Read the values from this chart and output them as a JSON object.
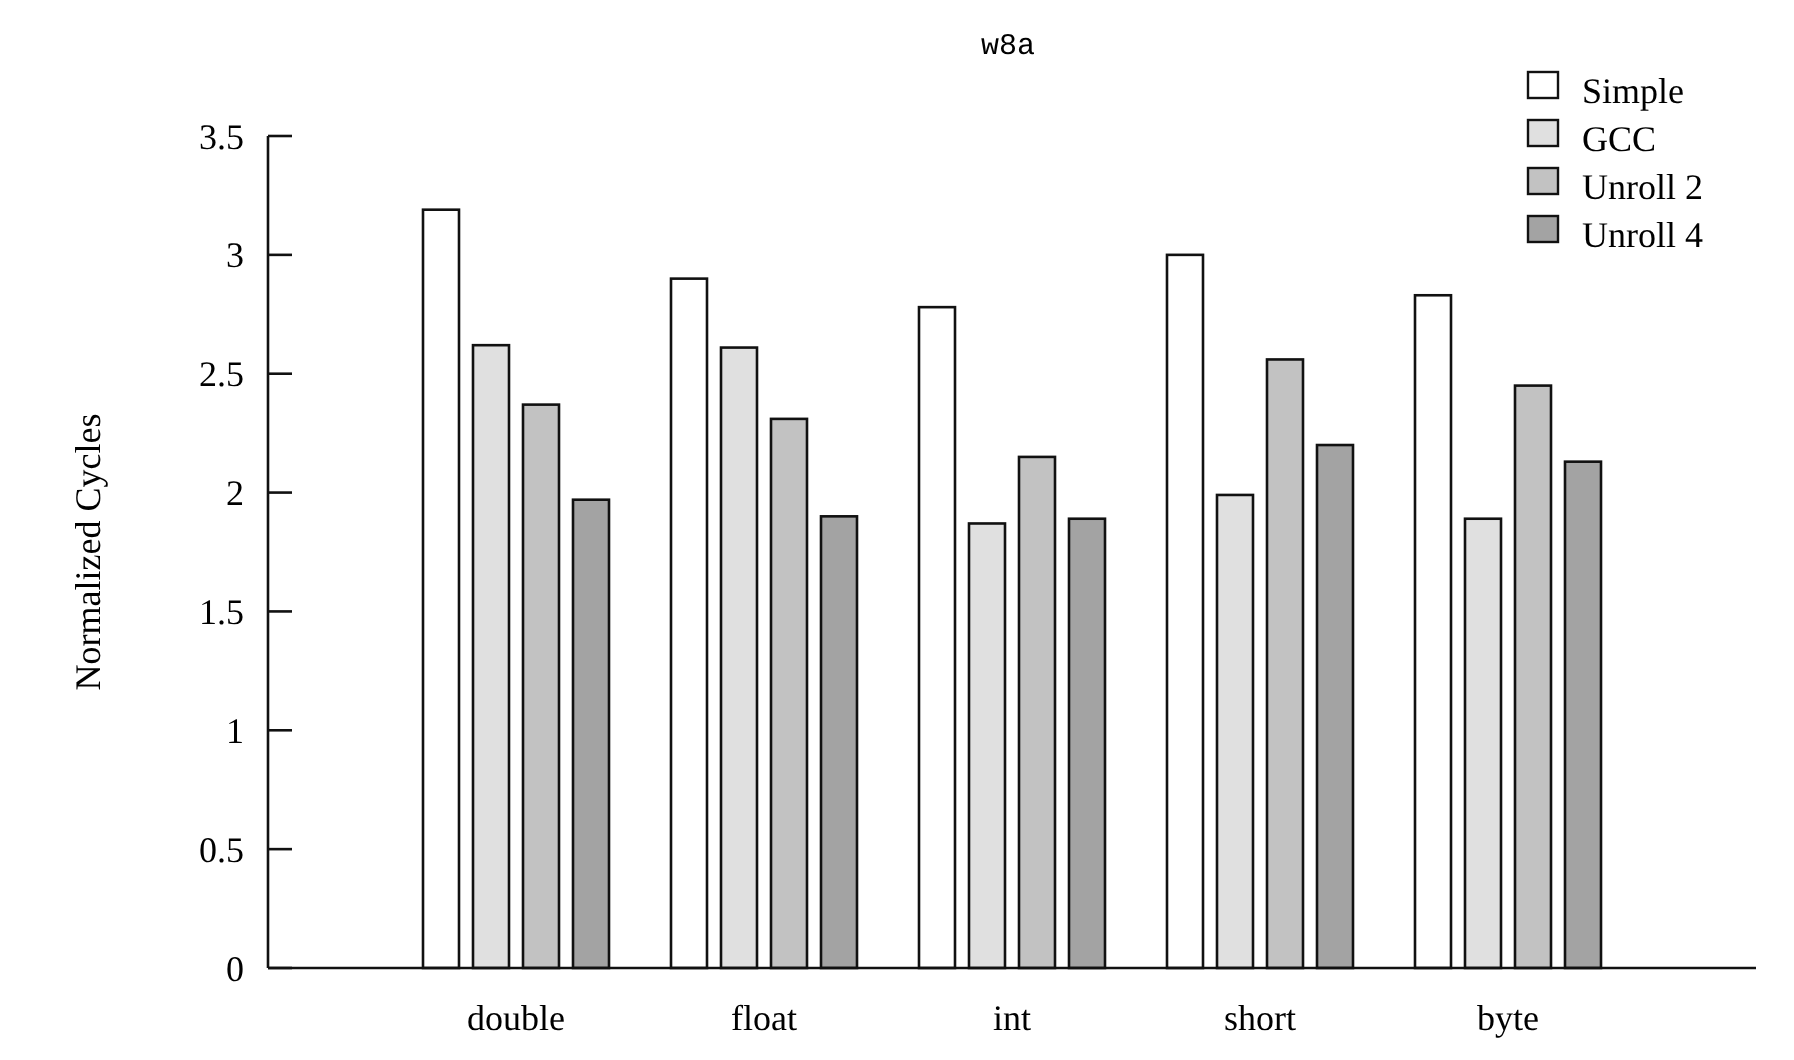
{
  "chart_data": {
    "type": "bar",
    "title": "w8a",
    "ylabel": "Normalized Cycles",
    "categories": [
      "double",
      "float",
      "int",
      "short",
      "byte"
    ],
    "series": [
      {
        "name": "Simple",
        "color": "#ffffff",
        "values": [
          3.19,
          2.9,
          2.78,
          3.0,
          2.83
        ]
      },
      {
        "name": "GCC",
        "color": "#e0e0e0",
        "values": [
          2.62,
          2.61,
          1.87,
          1.99,
          1.89
        ]
      },
      {
        "name": "Unroll 2",
        "color": "#c2c2c2",
        "values": [
          2.37,
          2.31,
          2.15,
          2.56,
          2.45
        ]
      },
      {
        "name": "Unroll 4",
        "color": "#a3a3a3",
        "values": [
          1.97,
          1.9,
          1.89,
          2.2,
          2.13
        ]
      }
    ],
    "ylim": [
      0,
      3.5
    ],
    "yticks": [
      0,
      0.5,
      1,
      1.5,
      2,
      2.5,
      3,
      3.5
    ],
    "legend": "top right",
    "grid": false
  }
}
